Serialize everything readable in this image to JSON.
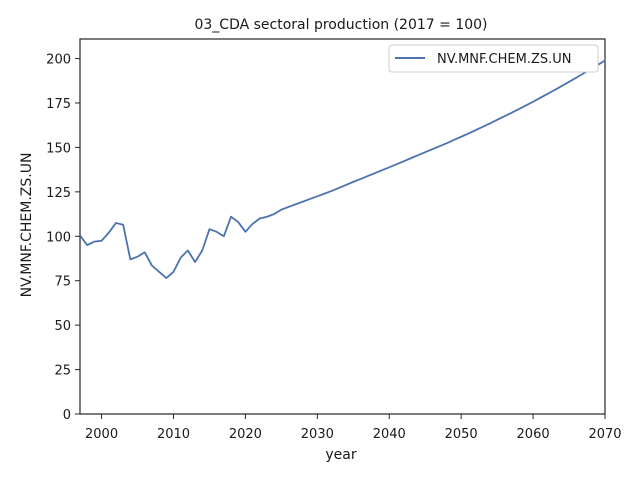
{
  "chart_data": {
    "type": "line",
    "title": "03_CDA sectoral production (2017 = 100)",
    "xlabel": "year",
    "ylabel": "NV.MNF.CHEM.ZS.UN",
    "xlim": [
      1997,
      2070
    ],
    "ylim": [
      0,
      211
    ],
    "x_ticks": [
      2000,
      2010,
      2020,
      2030,
      2040,
      2050,
      2060,
      2070
    ],
    "y_ticks": [
      0,
      25,
      50,
      75,
      100,
      125,
      150,
      175,
      200
    ],
    "grid": false,
    "legend_position": "top-right",
    "series": [
      {
        "name": "NV.MNF.CHEM.ZS.UN",
        "color": "#4c72b0",
        "x": [
          1997,
          1998,
          1999,
          2000,
          2001,
          2002,
          2003,
          2004,
          2005,
          2006,
          2007,
          2008,
          2009,
          2010,
          2011,
          2012,
          2013,
          2014,
          2015,
          2016,
          2017,
          2018,
          2019,
          2020,
          2021,
          2022,
          2023,
          2024,
          2025,
          2026,
          2027,
          2028,
          2029,
          2030,
          2031,
          2032,
          2033,
          2034,
          2035,
          2036,
          2037,
          2038,
          2039,
          2040,
          2041,
          2042,
          2043,
          2044,
          2045,
          2046,
          2047,
          2048,
          2049,
          2050,
          2051,
          2052,
          2053,
          2054,
          2055,
          2056,
          2057,
          2058,
          2059,
          2060,
          2061,
          2062,
          2063,
          2064,
          2065,
          2066,
          2067,
          2068,
          2069,
          2070
        ],
        "values": [
          100.5,
          95.0,
          97.0,
          97.5,
          102.0,
          107.5,
          106.5,
          87.0,
          88.5,
          91.0,
          83.5,
          80.0,
          76.5,
          80.0,
          88.0,
          92.0,
          85.5,
          92.0,
          104.0,
          102.5,
          100.0,
          111.0,
          108.0,
          102.5,
          107.0,
          110.0,
          111.0,
          112.5,
          115.0,
          116.5,
          118.0,
          119.5,
          121.0,
          122.5,
          124.0,
          125.5,
          127.2,
          128.9,
          130.6,
          132.2,
          133.9,
          135.5,
          137.2,
          138.8,
          140.5,
          142.2,
          143.9,
          145.6,
          147.3,
          149.0,
          150.7,
          152.4,
          154.2,
          156.0,
          157.8,
          159.7,
          161.6,
          163.5,
          165.5,
          167.5,
          169.5,
          171.5,
          173.6,
          175.7,
          177.9,
          180.1,
          182.3,
          184.6,
          186.9,
          189.2,
          191.6,
          194.0,
          196.4,
          198.9
        ]
      }
    ]
  }
}
